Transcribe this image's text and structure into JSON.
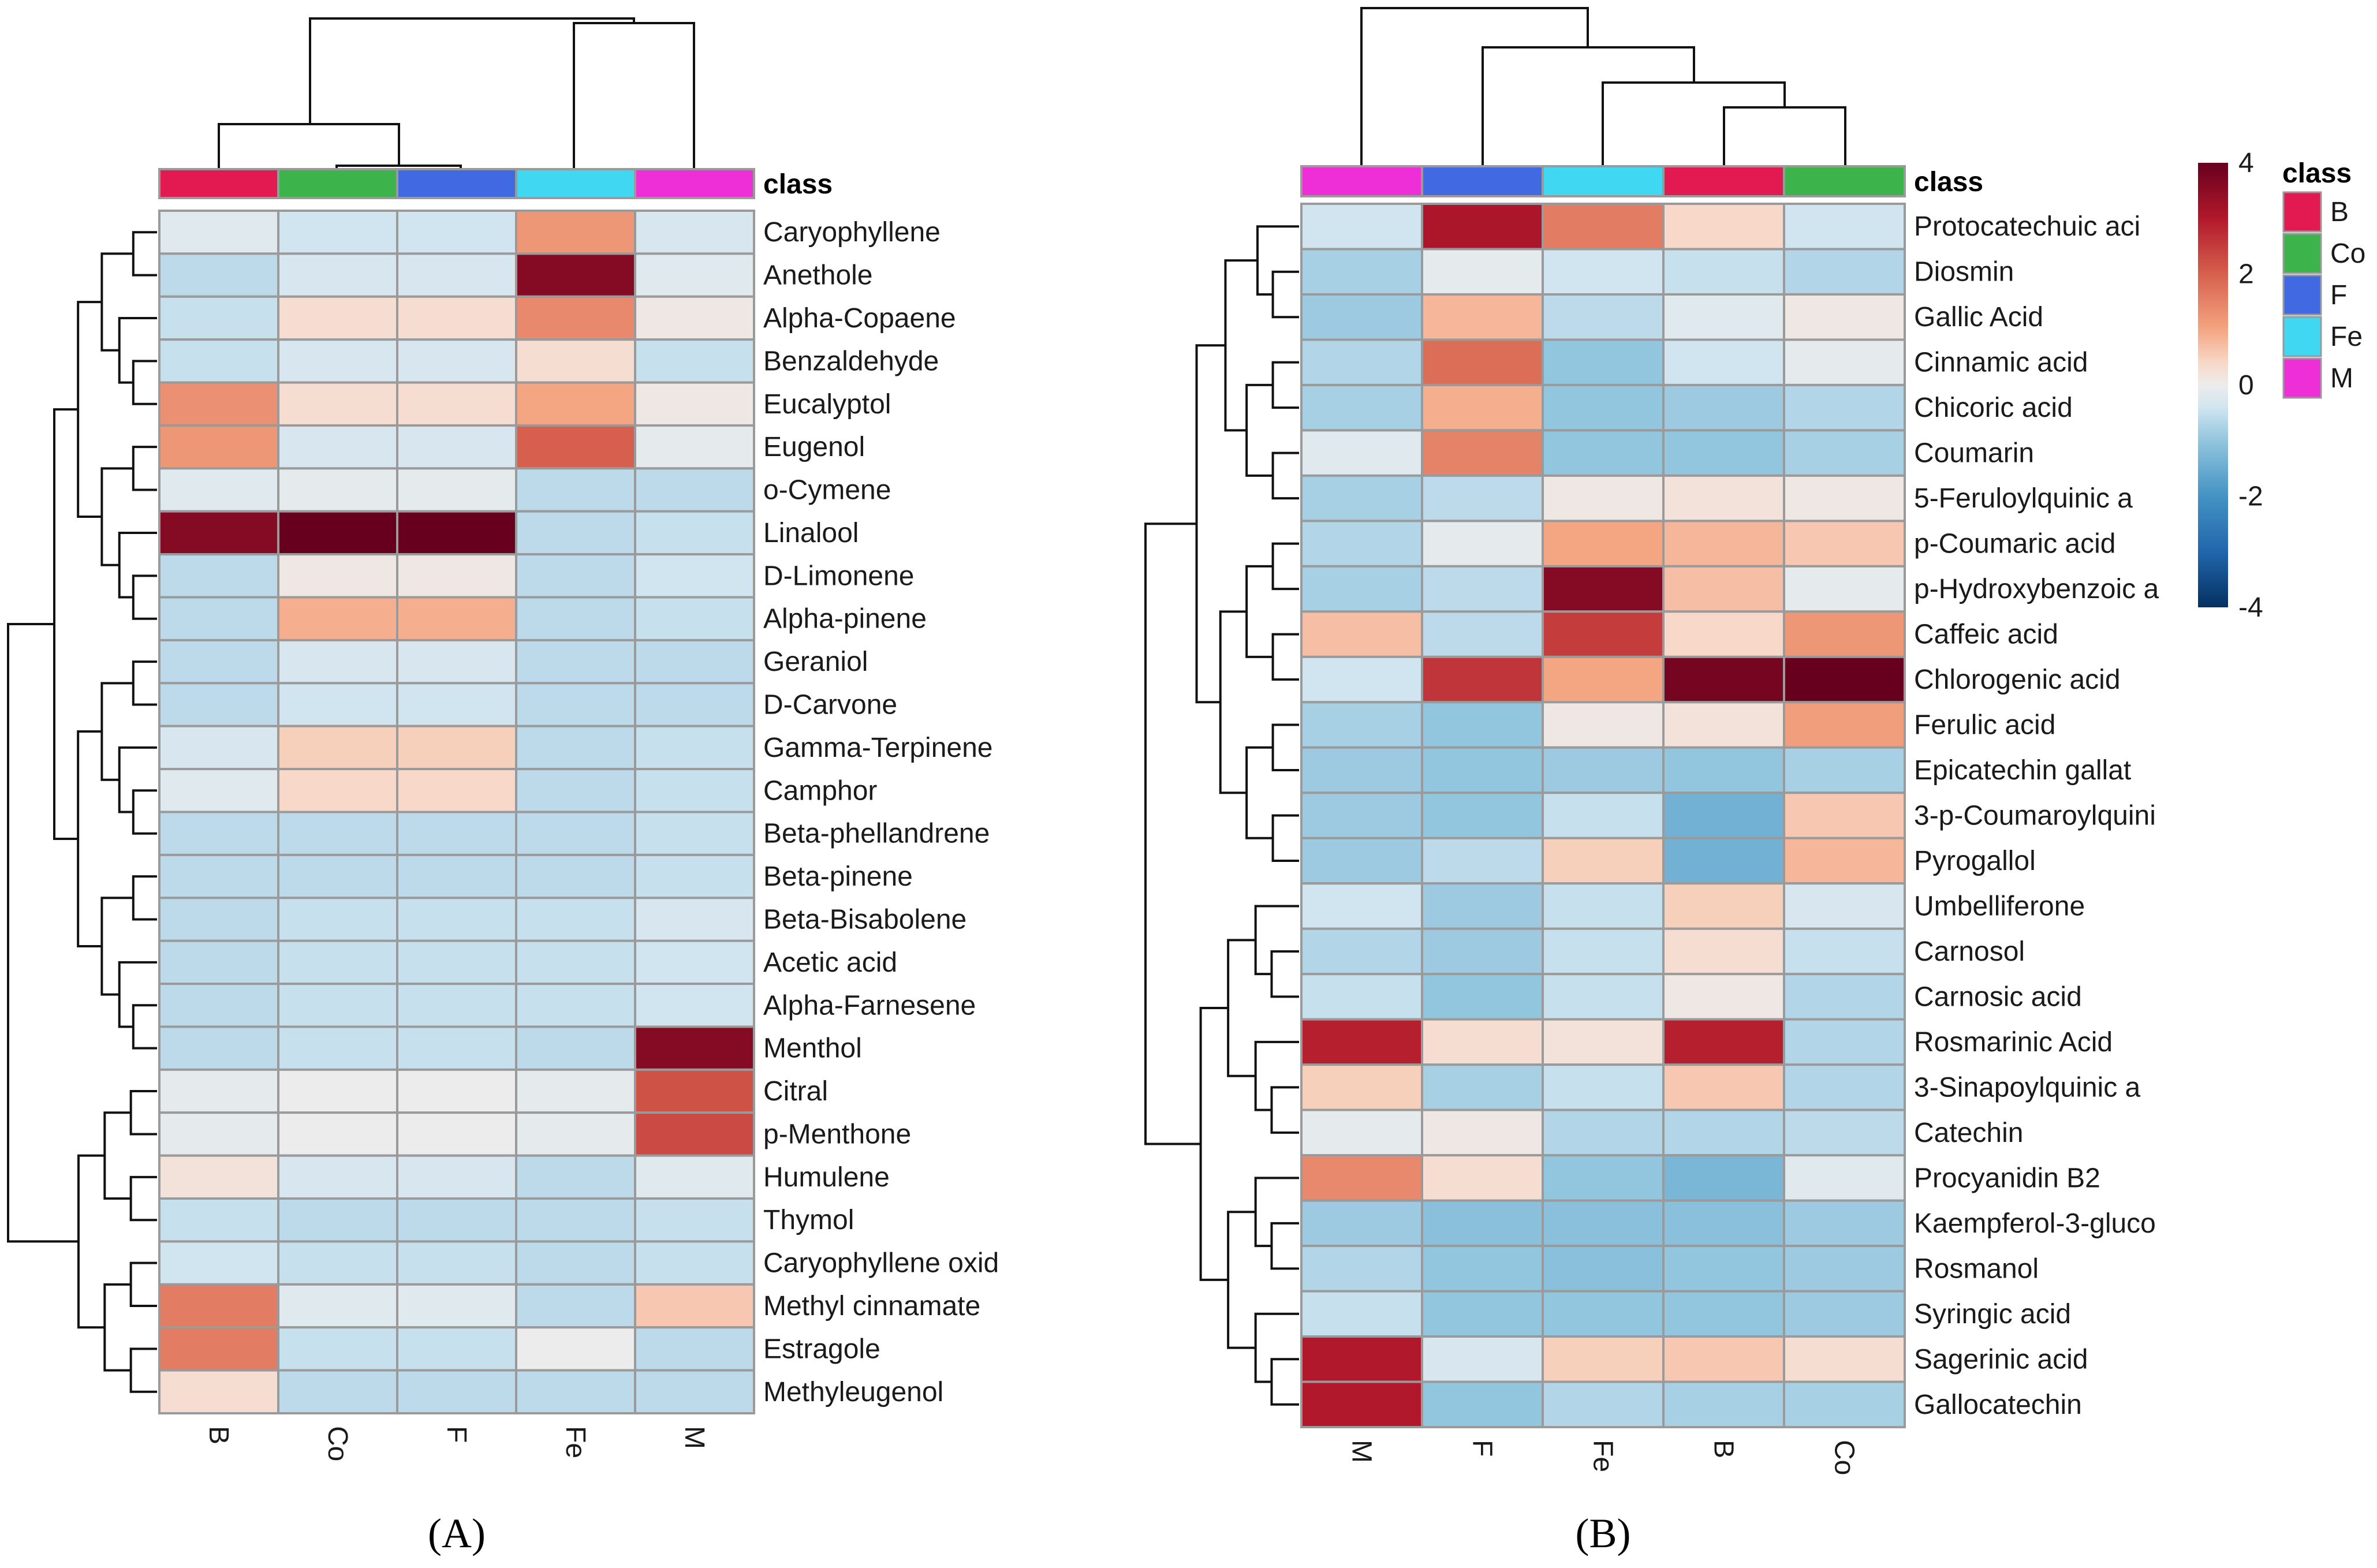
{
  "figure": {
    "panel_labels": [
      "(A)",
      "(B)"
    ],
    "class_label": "class",
    "legend_title": "class",
    "legend_entries": [
      {
        "name": "B",
        "color": "#e31a52"
      },
      {
        "name": "Co",
        "color": "#3cb44b"
      },
      {
        "name": "F",
        "color": "#4169e1"
      },
      {
        "name": "Fe",
        "color": "#3fd7f2"
      },
      {
        "name": "M",
        "color": "#ee2fd7"
      }
    ],
    "colorbar": {
      "min": -4,
      "max": 4,
      "ticks": [
        "4",
        "2",
        "0",
        "-2",
        "-4"
      ],
      "tick_values": [
        4,
        2,
        0,
        -2,
        -4
      ]
    }
  },
  "chart_data": [
    {
      "type": "heatmap",
      "panel": "A",
      "columns": [
        "B",
        "Co",
        "F",
        "Fe",
        "M"
      ],
      "rows": [
        "Caryophyllene",
        "Anethole",
        "Alpha-Copaene",
        "Benzaldehyde",
        "Eucalyptol",
        "Eugenol",
        "o-Cymene",
        "Linalool",
        "D-Limonene",
        "Alpha-pinene",
        "Geraniol",
        "D-Carvone",
        "Gamma-Terpinene",
        "Camphor",
        "Beta-phellandrene",
        "Beta-pinene",
        "Beta-Bisabolene",
        "Acetic acid",
        "Alpha-Farnesene",
        "Menthol",
        "Citral",
        "p-Menthone",
        "Humulene",
        "Thymol",
        "Caryophyllene oxid",
        "Methyl cinnamate",
        "Estragole",
        "Methyleugenol"
      ],
      "values": [
        [
          -0.2,
          -0.4,
          -0.4,
          1.2,
          -0.3
        ],
        [
          -0.6,
          -0.3,
          -0.3,
          3.6,
          -0.2
        ],
        [
          -0.5,
          0.3,
          0.3,
          1.4,
          0.1
        ],
        [
          -0.5,
          -0.3,
          -0.3,
          0.3,
          -0.5
        ],
        [
          1.3,
          0.3,
          0.3,
          1.0,
          0.1
        ],
        [
          1.2,
          -0.3,
          -0.3,
          2.0,
          -0.1
        ],
        [
          -0.2,
          -0.1,
          -0.1,
          -0.6,
          -0.6
        ],
        [
          3.6,
          4.3,
          4.3,
          -0.6,
          -0.5
        ],
        [
          -0.6,
          0.1,
          0.1,
          -0.6,
          -0.4
        ],
        [
          -0.6,
          0.9,
          0.9,
          -0.6,
          -0.5
        ],
        [
          -0.6,
          -0.3,
          -0.3,
          -0.6,
          -0.6
        ],
        [
          -0.6,
          -0.4,
          -0.4,
          -0.6,
          -0.6
        ],
        [
          -0.3,
          0.5,
          0.5,
          -0.6,
          -0.5
        ],
        [
          -0.2,
          0.4,
          0.4,
          -0.6,
          -0.5
        ],
        [
          -0.6,
          -0.6,
          -0.6,
          -0.6,
          -0.5
        ],
        [
          -0.6,
          -0.6,
          -0.6,
          -0.6,
          -0.5
        ],
        [
          -0.6,
          -0.5,
          -0.5,
          -0.5,
          -0.3
        ],
        [
          -0.6,
          -0.5,
          -0.5,
          -0.5,
          -0.4
        ],
        [
          -0.6,
          -0.5,
          -0.5,
          -0.5,
          -0.4
        ],
        [
          -0.6,
          -0.5,
          -0.5,
          -0.6,
          3.6
        ],
        [
          -0.1,
          0.0,
          0.0,
          -0.1,
          2.2
        ],
        [
          -0.1,
          0.0,
          0.0,
          -0.1,
          2.3
        ],
        [
          0.2,
          -0.3,
          -0.3,
          -0.6,
          -0.2
        ],
        [
          -0.5,
          -0.6,
          -0.6,
          -0.6,
          -0.5
        ],
        [
          -0.4,
          -0.5,
          -0.5,
          -0.6,
          -0.5
        ],
        [
          1.6,
          -0.2,
          -0.2,
          -0.6,
          0.6
        ],
        [
          1.6,
          -0.5,
          -0.5,
          0.0,
          -0.6
        ],
        [
          0.3,
          -0.6,
          -0.6,
          -0.6,
          -0.6
        ]
      ],
      "color_scale": [
        -4,
        4
      ]
    },
    {
      "type": "heatmap",
      "panel": "B",
      "columns": [
        "M",
        "F",
        "Fe",
        "B",
        "Co"
      ],
      "rows": [
        "Protocatechuic aci",
        "Diosmin",
        "Gallic Acid",
        "Cinnamic acid",
        "Chicoric acid",
        "Coumarin",
        "5-Feruloylquinic a",
        "p-Coumaric acid",
        "p-Hydroxybenzoic a",
        "Caffeic acid",
        "Chlorogenic acid",
        "Ferulic acid",
        "Epicatechin gallat",
        "3-p-Coumaroylquini",
        "Pyrogallol",
        "Umbelliferone",
        "Carnosol",
        "Carnosic acid",
        "Rosmarinic Acid",
        "3-Sinapoylquinic a",
        "Catechin",
        "Procyanidin B2",
        "Kaempferol-3-gluco",
        "Rosmanol",
        "Syringic acid",
        "Sagerinic acid",
        "Gallocatechin"
      ],
      "values": [
        [
          -0.4,
          3.1,
          1.6,
          0.4,
          -0.4
        ],
        [
          -0.8,
          -0.1,
          -0.4,
          -0.5,
          -0.7
        ],
        [
          -0.9,
          0.8,
          -0.6,
          -0.2,
          0.1
        ],
        [
          -0.7,
          1.8,
          -1.0,
          -0.4,
          -0.1
        ],
        [
          -0.8,
          0.9,
          -1.0,
          -0.9,
          -0.7
        ],
        [
          -0.2,
          1.5,
          -1.0,
          -1.0,
          -0.8
        ],
        [
          -0.8,
          -0.6,
          0.1,
          0.2,
          0.1
        ],
        [
          -0.7,
          -0.1,
          1.0,
          0.8,
          0.6
        ],
        [
          -0.8,
          -0.6,
          3.6,
          0.7,
          -0.1
        ],
        [
          0.7,
          -0.6,
          2.5,
          0.4,
          1.2
        ],
        [
          -0.4,
          2.6,
          1.0,
          3.8,
          4.6
        ],
        [
          -0.8,
          -1.0,
          0.1,
          0.2,
          1.1
        ],
        [
          -0.9,
          -1.0,
          -0.9,
          -1.0,
          -0.8
        ],
        [
          -0.9,
          -1.0,
          -0.5,
          -1.4,
          0.6
        ],
        [
          -0.9,
          -0.6,
          0.5,
          -1.4,
          0.8
        ],
        [
          -0.4,
          -0.9,
          -0.5,
          0.5,
          -0.3
        ],
        [
          -0.7,
          -0.9,
          -0.5,
          0.3,
          -0.5
        ],
        [
          -0.5,
          -1.0,
          -0.5,
          0.1,
          -0.7
        ],
        [
          2.9,
          0.3,
          0.2,
          2.9,
          -0.7
        ],
        [
          0.5,
          -0.8,
          -0.5,
          0.6,
          -0.7
        ],
        [
          -0.1,
          0.1,
          -0.7,
          -0.7,
          -0.6
        ],
        [
          1.4,
          0.3,
          -1.0,
          -1.3,
          -0.2
        ],
        [
          -0.9,
          -1.1,
          -1.1,
          -1.1,
          -0.9
        ],
        [
          -0.7,
          -1.0,
          -1.1,
          -1.0,
          -0.9
        ],
        [
          -0.5,
          -1.0,
          -1.0,
          -1.0,
          -0.9
        ],
        [
          3.0,
          -0.3,
          0.5,
          0.6,
          0.3
        ],
        [
          3.0,
          -1.0,
          -0.7,
          -0.8,
          -0.8
        ]
      ],
      "color_scale": [
        -4,
        4
      ]
    }
  ]
}
